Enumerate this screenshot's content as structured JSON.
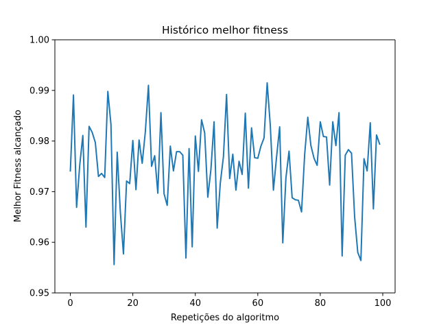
{
  "chart_data": {
    "type": "line",
    "title": "Histórico melhor fitness",
    "xlabel": "Repetições do algoritmo",
    "ylabel": "Melhor Fitness alcançado",
    "xlim": [
      -4.95,
      103.95
    ],
    "ylim": [
      0.95,
      1.0
    ],
    "grid": false,
    "xticks": [
      0,
      20,
      40,
      60,
      80,
      100
    ],
    "xtick_labels": [
      "0",
      "20",
      "40",
      "60",
      "80",
      "100"
    ],
    "yticks": [
      0.95,
      0.96,
      0.97,
      0.98,
      0.99,
      1.0
    ],
    "ytick_labels": [
      "0.95",
      "0.96",
      "0.97",
      "0.98",
      "0.99",
      "1.00"
    ],
    "series": [
      {
        "name": "melhor fitness",
        "color": "#1f77b4",
        "x": [
          0,
          1,
          2,
          3,
          4,
          5,
          6,
          7,
          8,
          9,
          10,
          11,
          12,
          13,
          14,
          15,
          16,
          17,
          18,
          19,
          20,
          21,
          22,
          23,
          24,
          25,
          26,
          27,
          28,
          29,
          30,
          31,
          32,
          33,
          34,
          35,
          36,
          37,
          38,
          39,
          40,
          41,
          42,
          43,
          44,
          45,
          46,
          47,
          48,
          49,
          50,
          51,
          52,
          53,
          54,
          55,
          56,
          57,
          58,
          59,
          60,
          61,
          62,
          63,
          64,
          65,
          66,
          67,
          68,
          69,
          70,
          71,
          72,
          73,
          74,
          75,
          76,
          77,
          78,
          79,
          80,
          81,
          82,
          83,
          84,
          85,
          86,
          87,
          88,
          89,
          90,
          91,
          92,
          93,
          94,
          95,
          96,
          97,
          98,
          99
        ],
        "values": [
          0.9741,
          0.9891,
          0.9669,
          0.9752,
          0.9811,
          0.963,
          0.9829,
          0.9817,
          0.9797,
          0.973,
          0.9736,
          0.9728,
          0.9898,
          0.9833,
          0.9556,
          0.9778,
          0.966,
          0.9577,
          0.9721,
          0.9716,
          0.9801,
          0.9704,
          0.9802,
          0.9756,
          0.9818,
          0.991,
          0.975,
          0.9771,
          0.9697,
          0.9856,
          0.9696,
          0.9673,
          0.979,
          0.9741,
          0.9779,
          0.9779,
          0.9772,
          0.9569,
          0.9785,
          0.9591,
          0.981,
          0.974,
          0.9842,
          0.9816,
          0.9689,
          0.9744,
          0.9838,
          0.9628,
          0.9717,
          0.9769,
          0.9892,
          0.9726,
          0.9774,
          0.9703,
          0.976,
          0.9734,
          0.9855,
          0.9707,
          0.9826,
          0.9767,
          0.9766,
          0.979,
          0.9806,
          0.9915,
          0.9831,
          0.9703,
          0.9768,
          0.9828,
          0.9599,
          0.9727,
          0.978,
          0.9688,
          0.9684,
          0.9683,
          0.966,
          0.9773,
          0.9847,
          0.9791,
          0.9766,
          0.9752,
          0.9838,
          0.9809,
          0.9808,
          0.9713,
          0.9838,
          0.9791,
          0.9856,
          0.9573,
          0.9772,
          0.9783,
          0.9776,
          0.965,
          0.958,
          0.9564,
          0.9765,
          0.9741,
          0.9836,
          0.9666,
          0.9812,
          0.9794
        ]
      }
    ]
  }
}
